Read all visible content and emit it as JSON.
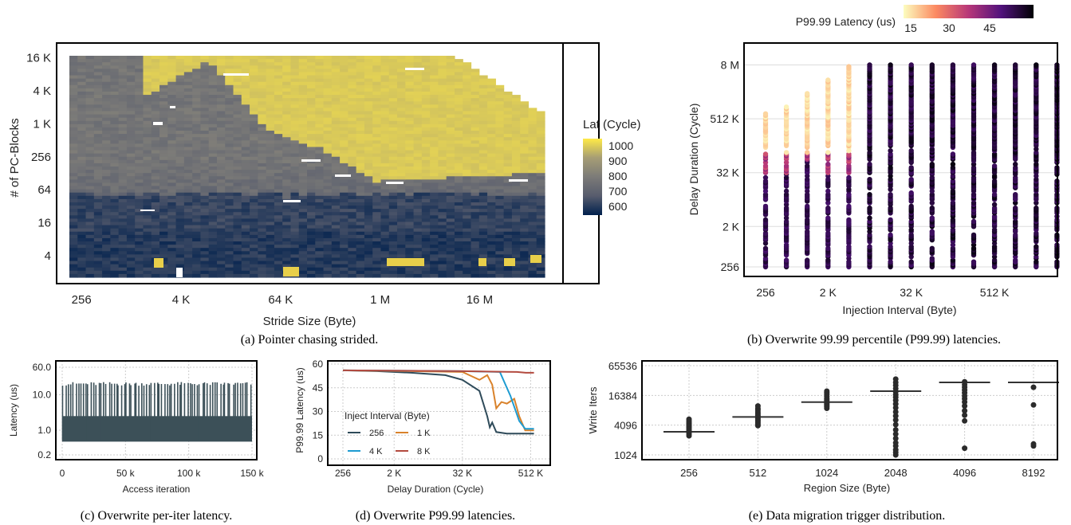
{
  "chart_data": [
    {
      "id": "a",
      "type": "heatmap",
      "caption": "(a) Pointer chasing strided.",
      "xlabel": "Stride Size (Byte)",
      "ylabel": "# of PC-Blocks",
      "x_ticks": [
        "256",
        "4 K",
        "64 K",
        "1 M",
        "16 M"
      ],
      "y_ticks": [
        "4",
        "16",
        "64",
        "256",
        "1 K",
        "4 K",
        "16 K"
      ],
      "x_scale": "log2",
      "y_scale": "log2",
      "colorbar": {
        "title": "Lat (Cycle)",
        "ticks": [
          "1000",
          "900",
          "800",
          "700",
          "600"
        ],
        "range": [
          550,
          1050
        ],
        "colors": [
          "#00204d",
          "#575c6d",
          "#7c7b78",
          "#a69d75",
          "#ffea46"
        ]
      },
      "regions": {
        "high_latency_value": 1000,
        "mid_latency_value": 780,
        "low_latency_value": 620,
        "high_region_starts_at_blocks": "~256 (at large strides)",
        "low_region_below_blocks": 64
      }
    },
    {
      "id": "b",
      "type": "scatter",
      "caption": "(b) Overwrite 99.99 percentile (P99.99) latencies.",
      "xlabel": "Injection Interval (Byte)",
      "ylabel": "Delay Duration (Cycle)",
      "x_ticks": [
        "256",
        "2 K",
        "32 K",
        "512 K"
      ],
      "y_ticks": [
        "256",
        "2 K",
        "32 K",
        "512 K",
        "8 M"
      ],
      "x_scale": "log2",
      "y_scale": "log2",
      "colorbar": {
        "title": "P99.99 Latency (us)",
        "ticks": [
          "15",
          "30",
          "45"
        ],
        "range": [
          10,
          55
        ],
        "colors": [
          "#fcfdbf",
          "#fc8961",
          "#b73779",
          "#51127c",
          "#000004"
        ]
      },
      "columns_interval_bytes": [
        256,
        512,
        1024,
        2048,
        4096,
        8192,
        16384,
        32768,
        65536,
        131072,
        262144,
        524288,
        1048576,
        2097152,
        4194304
      ],
      "low_latency_columns_max_delay": [
        700000,
        1000000,
        2000000,
        4000000,
        8000000
      ]
    },
    {
      "id": "c",
      "type": "line",
      "caption": "(c) Overwrite per-iter latency.",
      "xlabel": "Access iteration",
      "ylabel": "Latency (us)",
      "x_ticks": [
        "0",
        "50 k",
        "100 k",
        "150 k"
      ],
      "y_ticks": [
        "0.2",
        "1.0",
        "10.0",
        "60.0"
      ],
      "x_range": [
        0,
        150000
      ],
      "y_scale": "log",
      "baseline_latency": 0.5,
      "band_top_latency": 2.5,
      "spike_latency": 20,
      "spike_count": 75
    },
    {
      "id": "d",
      "type": "line",
      "caption": "(d) Overwrite P99.99 latencies.",
      "xlabel": "Delay Duration (Cycle)",
      "ylabel": "P99.99 Latency (us)",
      "x_ticks": [
        "256",
        "2 K",
        "32 K",
        "512 K"
      ],
      "y_ticks": [
        "0",
        "15",
        "30",
        "45",
        "60"
      ],
      "x_scale": "log2",
      "ylim": [
        0,
        60
      ],
      "legend_title": "Inject Interval (Byte)",
      "series": [
        {
          "name": "256",
          "color": "#2f4b5a",
          "points": [
            [
              256,
              56
            ],
            [
              1024,
              55.5
            ],
            [
              4096,
              54.5
            ],
            [
              16384,
              53
            ],
            [
              32768,
              50
            ],
            [
              65536,
              43
            ],
            [
              90000,
              27
            ],
            [
              100000,
              20
            ],
            [
              110000,
              23
            ],
            [
              130000,
              17
            ],
            [
              200000,
              16
            ],
            [
              600000,
              16
            ]
          ]
        },
        {
          "name": "1 K",
          "color": "#d9822b",
          "points": [
            [
              256,
              56
            ],
            [
              4096,
              55.5
            ],
            [
              32768,
              55
            ],
            [
              65536,
              50
            ],
            [
              90000,
              53
            ],
            [
              110000,
              47
            ],
            [
              130000,
              32
            ],
            [
              160000,
              36
            ],
            [
              200000,
              35
            ],
            [
              270000,
              38
            ],
            [
              330000,
              27
            ],
            [
              420000,
              18
            ],
            [
              600000,
              18
            ]
          ]
        },
        {
          "name": "4 K",
          "color": "#1d9bd1",
          "points": [
            [
              256,
              56
            ],
            [
              32768,
              55.5
            ],
            [
              150000,
              55
            ],
            [
              230000,
              40
            ],
            [
              330000,
              24
            ],
            [
              420000,
              19
            ],
            [
              600000,
              19
            ]
          ]
        },
        {
          "name": "8 K",
          "color": "#b34a3f",
          "points": [
            [
              256,
              56
            ],
            [
              32768,
              55.5
            ],
            [
              300000,
              55
            ],
            [
              430000,
              54.5
            ],
            [
              600000,
              54.5
            ]
          ]
        }
      ]
    },
    {
      "id": "e",
      "type": "scatter",
      "caption": "(e) Data migration trigger distribution.",
      "xlabel": "Region Size (Byte)",
      "ylabel": "Write Iters",
      "categories": [
        "256",
        "512",
        "1024",
        "2048",
        "4096",
        "8192"
      ],
      "y_ticks": [
        "1024",
        "4096",
        "16384",
        "65536"
      ],
      "y_scale": "log2",
      "medians": [
        3000,
        6000,
        12000,
        20000,
        30000,
        30000
      ],
      "points": [
        [
          2500,
          2700,
          2900,
          3100,
          3300,
          3500,
          3700,
          3900,
          4100,
          4400,
          4700,
          5000,
          5400
        ],
        [
          4000,
          4300,
          4600,
          4900,
          5200,
          5600,
          6000,
          6400,
          7000,
          7600,
          8300,
          9000,
          10000
        ],
        [
          9000,
          9600,
          10200,
          10800,
          11500,
          12200,
          13000,
          14000,
          15500,
          17000,
          18500,
          20000
        ],
        [
          1024,
          1150,
          1300,
          1550,
          1800,
          2200,
          2700,
          3300,
          4200,
          5200,
          6300,
          7600,
          9200,
          11000,
          13000,
          15000,
          17000,
          19500,
          22500,
          26000,
          30000,
          35000
        ],
        [
          1400,
          5000,
          6500,
          8000,
          10000,
          12000,
          14000,
          16000,
          18500,
          21000,
          24000,
          27000,
          31000
        ],
        [
          1550,
          1700,
          10500,
          24000
        ]
      ]
    }
  ]
}
